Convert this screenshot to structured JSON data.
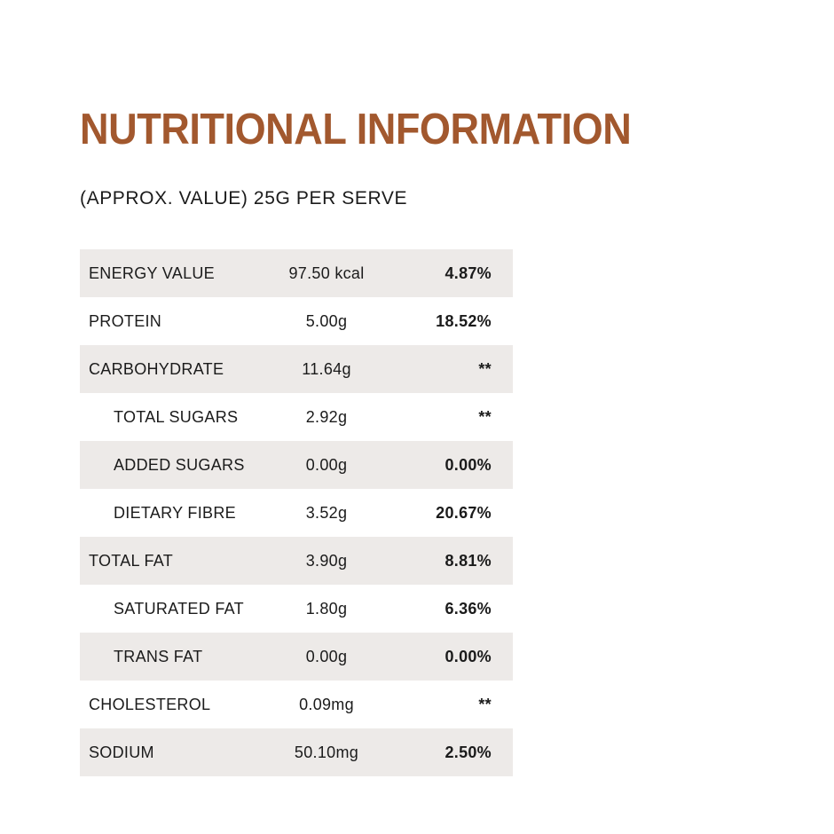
{
  "page": {
    "title": "NUTRITIONAL INFORMATION",
    "subtitle": "(APPROX. VALUE) 25G PER SERVE",
    "accent_color": "#a2582e",
    "row_alt_color": "#edeae8",
    "text_color": "#1b1b1b"
  },
  "table": {
    "rows": [
      {
        "label": "ENERGY VALUE",
        "value": "97.50 kcal",
        "percent": "4.87%"
      },
      {
        "label": "PROTEIN",
        "value": "5.00g",
        "percent": "18.52%"
      },
      {
        "label": "CARBOHYDRATE",
        "value": "11.64g",
        "percent": "**"
      },
      {
        "label": "TOTAL SUGARS",
        "value": "2.92g",
        "percent": "**"
      },
      {
        "label": "ADDED SUGARS",
        "value": "0.00g",
        "percent": "0.00%"
      },
      {
        "label": "DIETARY FIBRE",
        "value": "3.52g",
        "percent": "20.67%"
      },
      {
        "label": "TOTAL FAT",
        "value": "3.90g",
        "percent": "8.81%"
      },
      {
        "label": "SATURATED FAT",
        "value": "1.80g",
        "percent": "6.36%"
      },
      {
        "label": "TRANS FAT",
        "value": "0.00g",
        "percent": "0.00%"
      },
      {
        "label": "CHOLESTEROL",
        "value": "0.09mg",
        "percent": "**"
      },
      {
        "label": "SODIUM",
        "value": "50.10mg",
        "percent": "2.50%"
      }
    ]
  }
}
